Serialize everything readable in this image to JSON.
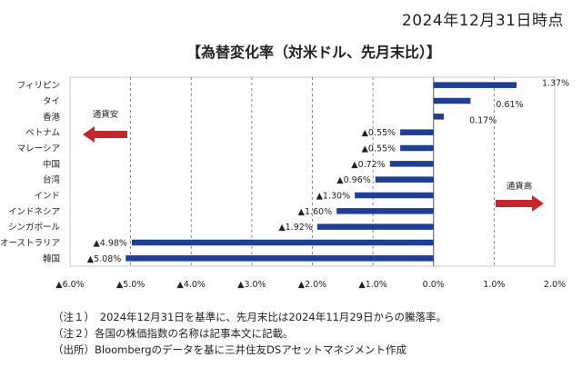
{
  "header": {
    "date": "2024年12月31日時点",
    "title": "【為替変化率（対米ドル、先月末比）】"
  },
  "chart_data": {
    "type": "bar",
    "orientation": "horizontal",
    "title": "為替変化率（対米ドル、先月末比）",
    "categories": [
      "フィリピン",
      "タイ",
      "香港",
      "ベトナム",
      "マレーシア",
      "中国",
      "台湾",
      "インド",
      "インドネシア",
      "シンガポール",
      "オーストラリア",
      "韓国"
    ],
    "values": [
      1.37,
      0.61,
      0.17,
      -0.55,
      -0.55,
      -0.72,
      -0.96,
      -1.3,
      -1.6,
      -1.92,
      -4.98,
      -5.08
    ],
    "value_labels": [
      "1.37%",
      "0.61%",
      "0.17%",
      "▲0.55%",
      "▲0.55%",
      "▲0.72%",
      "▲0.96%",
      "▲1.30%",
      "▲1.60%",
      "▲1.92%",
      "▲4.98%",
      "▲5.08%"
    ],
    "xlim": [
      -6.0,
      2.0
    ],
    "ticks": [
      -6,
      -5,
      -4,
      -3,
      -2,
      -1,
      0,
      1,
      2
    ],
    "tick_labels": [
      "▲6.0%",
      "▲5.0%",
      "▲4.0%",
      "▲3.0%",
      "▲2.0%",
      "▲1.0%",
      "0.0%",
      "1.0%",
      "2.0%"
    ],
    "bar_color": "#1f3f94",
    "grid": true,
    "annotations": {
      "left_arrow_label": "通貨安",
      "right_arrow_label": "通貨高",
      "arrow_color": "#c0282b"
    }
  },
  "notes": [
    "（注１）　2024年12月31日を基準に、先月末比は2024年11月29日からの騰落率。",
    "（注２）各国の株価指数の名称は記事本文に記載。",
    "（出所）Bloombergのデータを基に三井住友DSアセットマネジメント作成"
  ]
}
